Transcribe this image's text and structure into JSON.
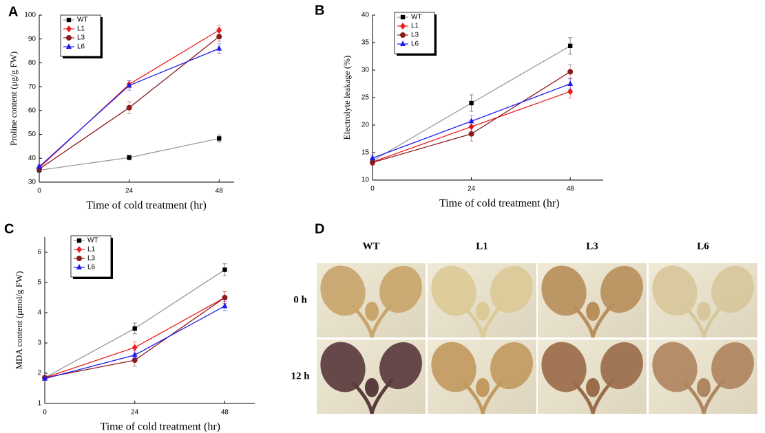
{
  "chart_data": [
    {
      "type": "line",
      "panel": "A",
      "xlabel": "Time of cold treatment (hr)",
      "ylabel": "Proline content (μg/g FW)",
      "x": [
        0,
        24,
        48
      ],
      "xlim": [
        0,
        52
      ],
      "xticks": [
        0,
        24,
        48
      ],
      "ylim": [
        30,
        100
      ],
      "yticks": [
        30,
        40,
        50,
        60,
        70,
        80,
        90,
        100
      ],
      "legend": "upper left",
      "series": [
        {
          "name": "WT",
          "color": "#000000",
          "line_color": "#999999",
          "marker": "square",
          "values": [
            35,
            40.3,
            48.3
          ],
          "errors": [
            0.5,
            1,
            1.5
          ]
        },
        {
          "name": "L1",
          "color": "#ee1c1c",
          "marker": "diamond",
          "values": [
            36,
            71,
            93.7
          ],
          "errors": [
            1,
            1.5,
            2
          ]
        },
        {
          "name": "L3",
          "color": "#8b1a1a",
          "marker": "circle",
          "values": [
            35.5,
            61.2,
            91
          ],
          "errors": [
            1,
            2.5,
            2
          ]
        },
        {
          "name": "L6",
          "color": "#1c1cee",
          "marker": "triangle",
          "values": [
            36.5,
            70.5,
            86
          ],
          "errors": [
            1,
            2,
            2
          ]
        }
      ]
    },
    {
      "type": "line",
      "panel": "B",
      "xlabel": "Time of cold treatment (hr)",
      "ylabel": "Electrolyte leakage (%)",
      "x": [
        0,
        24,
        48
      ],
      "xlim": [
        0,
        56
      ],
      "xticks": [
        0,
        24,
        48
      ],
      "ylim": [
        10,
        40
      ],
      "yticks": [
        10,
        15,
        20,
        25,
        30,
        35,
        40
      ],
      "legend": "upper left",
      "series": [
        {
          "name": "WT",
          "color": "#000000",
          "line_color": "#999999",
          "marker": "square",
          "values": [
            13.5,
            24,
            34.4
          ],
          "errors": [
            0.5,
            1.5,
            1.5
          ]
        },
        {
          "name": "L1",
          "color": "#ee1c1c",
          "marker": "diamond",
          "values": [
            13.3,
            19.7,
            26.1
          ],
          "errors": [
            0.5,
            1.2,
            1.2
          ]
        },
        {
          "name": "L3",
          "color": "#8b1a1a",
          "marker": "circle",
          "values": [
            13.2,
            18.4,
            29.7
          ],
          "errors": [
            0.5,
            1.3,
            1.3
          ]
        },
        {
          "name": "L6",
          "color": "#1c1cee",
          "marker": "triangle",
          "values": [
            14,
            20.7,
            27.5
          ],
          "errors": [
            0.5,
            1,
            1
          ]
        }
      ]
    },
    {
      "type": "line",
      "panel": "C",
      "xlabel": "Time of cold treatment (hr)",
      "ylabel": "MDA content (μmol/g FW)",
      "x": [
        0,
        24,
        48
      ],
      "xlim": [
        0,
        56
      ],
      "xticks": [
        0,
        24,
        48
      ],
      "ylim": [
        1,
        6.5
      ],
      "yticks": [
        1,
        2,
        3,
        4,
        5,
        6
      ],
      "legend": "upper left",
      "series": [
        {
          "name": "WT",
          "color": "#000000",
          "line_color": "#999999",
          "marker": "square",
          "values": [
            1.85,
            3.48,
            5.42
          ],
          "errors": [
            0.05,
            0.18,
            0.2
          ]
        },
        {
          "name": "L1",
          "color": "#ee1c1c",
          "marker": "diamond",
          "values": [
            1.85,
            2.85,
            4.5
          ],
          "errors": [
            0.05,
            0.2,
            0.2
          ]
        },
        {
          "name": "L3",
          "color": "#8b1a1a",
          "marker": "circle",
          "values": [
            1.85,
            2.43,
            4.5
          ],
          "errors": [
            0.05,
            0.2,
            0.2
          ]
        },
        {
          "name": "L6",
          "color": "#1c1cee",
          "marker": "triangle",
          "values": [
            1.82,
            2.6,
            4.22
          ],
          "errors": [
            0.05,
            0.15,
            0.15
          ]
        }
      ]
    }
  ],
  "panel_d": {
    "label": "D",
    "columns": [
      "WT",
      "L1",
      "L3",
      "L6"
    ],
    "rows": [
      "0 h",
      "12 h"
    ]
  }
}
